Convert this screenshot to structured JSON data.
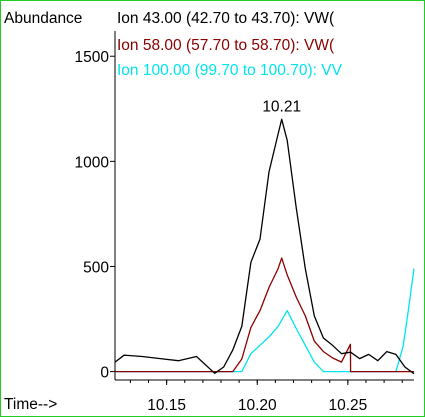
{
  "chart_data": {
    "type": "line",
    "ylabel": "Abundance",
    "xlabel": "Time-->",
    "xlim": [
      10.1215,
      10.2865
    ],
    "ylim": [
      -40,
      1620
    ],
    "x_ticks": [
      10.15,
      10.2,
      10.25
    ],
    "x_tick_labels": [
      "10.15",
      "10.20",
      "10.25"
    ],
    "y_ticks": [
      0,
      500,
      1000,
      1500
    ],
    "y_tick_labels": [
      "0",
      "500",
      "1000",
      "1500"
    ],
    "legend_position": "top-left",
    "annotations": [
      {
        "text": "10.21",
        "x": 10.2135,
        "y": 1200
      }
    ],
    "series": [
      {
        "name": "Ion  43.00 (42.70 to 43.70): VW(",
        "color": "#000000",
        "x": [
          10.1215,
          10.1265,
          10.1365,
          10.1465,
          10.1565,
          10.1665,
          10.1765,
          10.1815,
          10.1865,
          10.1915,
          10.1965,
          10.2015,
          10.2065,
          10.2115,
          10.2135,
          10.2165,
          10.2215,
          10.2265,
          10.2315,
          10.2365,
          10.2415,
          10.2465,
          10.2515,
          10.2565,
          10.2615,
          10.2665,
          10.2715,
          10.2765,
          10.2815,
          10.2865
        ],
        "y": [
          45,
          78,
          72,
          62,
          52,
          72,
          -8,
          22,
          103,
          215,
          520,
          630,
          950,
          1130,
          1200,
          1100,
          780,
          490,
          265,
          160,
          125,
          85,
          92,
          62,
          82,
          52,
          95,
          82,
          22,
          -10
        ]
      },
      {
        "name": "Ion  58.00 (57.70 to 58.70): VW(",
        "color": "#8b0000",
        "x": [
          10.1215,
          10.1865,
          10.1915,
          10.1965,
          10.2015,
          10.2065,
          10.2115,
          10.2135,
          10.2165,
          10.2215,
          10.2265,
          10.2315,
          10.2365,
          10.2415,
          10.2465,
          10.2514,
          10.2515,
          10.2865
        ],
        "y": [
          0,
          0,
          60,
          210,
          290,
          400,
          490,
          540,
          460,
          355,
          265,
          145,
          95,
          65,
          45,
          130,
          0,
          0
        ]
      },
      {
        "name": "Ion 100.00 (99.70 to 100.70): VV",
        "color": "#00e5ee",
        "x": [
          10.1215,
          10.1915,
          10.1965,
          10.2015,
          10.2065,
          10.2115,
          10.2165,
          10.2215,
          10.2265,
          10.2315,
          10.2365,
          10.2415,
          10.2765,
          10.2805,
          10.2835,
          10.2865
        ],
        "y": [
          0,
          0,
          85,
          125,
          165,
          215,
          290,
          205,
          125,
          45,
          0,
          0,
          0,
          120,
          300,
          490
        ]
      }
    ]
  }
}
